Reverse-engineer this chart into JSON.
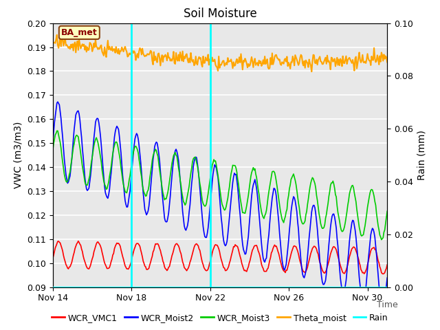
{
  "title": "Soil Moisture",
  "xlabel": "Time",
  "ylabel_left": "VWC (m3/m3)",
  "ylabel_right": "Rain (mm)",
  "ylim_left": [
    0.09,
    0.2
  ],
  "ylim_right": [
    0.0,
    0.1
  ],
  "yticks_left": [
    0.09,
    0.1,
    0.11,
    0.12,
    0.13,
    0.14,
    0.15,
    0.16,
    0.17,
    0.18,
    0.19,
    0.2
  ],
  "yticks_right": [
    0.0,
    0.02,
    0.04,
    0.06,
    0.08,
    0.1
  ],
  "xtick_labels": [
    "Nov 14",
    "Nov 18",
    "Nov 22",
    "Nov 26",
    "Nov 30"
  ],
  "xtick_positions": [
    0,
    4,
    8,
    12,
    16
  ],
  "vline_positions": [
    4,
    8
  ],
  "vline_color": "#00FFFF",
  "annotation_label": "BA_met",
  "colors": {
    "WCR_VMC1": "#FF0000",
    "WCR_Moist2": "#0000FF",
    "WCR_Moist3": "#00CC00",
    "Theta_moist": "#FFA500",
    "Rain": "#00FFFF"
  },
  "background_color": "#FFFFFF",
  "plot_bg_color": "#E8E8E8",
  "grid_color": "#FFFFFF",
  "n_days": 17,
  "samples_per_day": 24
}
